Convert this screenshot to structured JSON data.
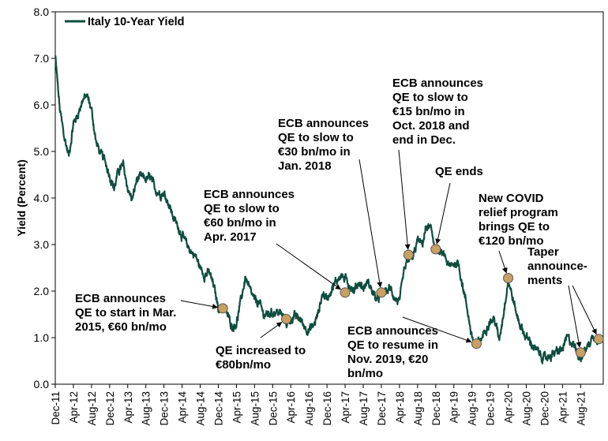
{
  "chart_data": {
    "type": "line",
    "title": "",
    "ylabel": "Yield (Percent)",
    "xlabel": "",
    "ylim": [
      0.0,
      8.0
    ],
    "yticks": [
      "0.0",
      "1.0",
      "2.0",
      "3.0",
      "4.0",
      "5.0",
      "6.0",
      "7.0",
      "8.0"
    ],
    "xticks": [
      "Dec-11",
      "Apr-12",
      "Aug-12",
      "Dec-12",
      "Apr-13",
      "Aug-13",
      "Dec-13",
      "Apr-14",
      "Aug-14",
      "Dec-14",
      "Apr-15",
      "Aug-15",
      "Dec-15",
      "Apr-16",
      "Aug-16",
      "Dec-16",
      "Apr-17",
      "Aug-17",
      "Dec-17",
      "Apr-18",
      "Aug-18",
      "Dec-18",
      "Apr-19",
      "Aug-19",
      "Dec-19",
      "Apr-20",
      "Aug-20",
      "Dec-20",
      "Apr-21",
      "Aug-21"
    ],
    "grid": false,
    "legend_position": "top-left",
    "line_color": "#0f4d3e",
    "marker_color": "#c9a064",
    "series": [
      {
        "name": "Italy 10-Year Yield",
        "points": [
          [
            "2011-12",
            7.05
          ],
          [
            "2012-01",
            5.9
          ],
          [
            "2012-02",
            5.3
          ],
          [
            "2012-03",
            4.9
          ],
          [
            "2012-04",
            5.6
          ],
          [
            "2012-05",
            5.8
          ],
          [
            "2012-06",
            6.1
          ],
          [
            "2012-07",
            6.2
          ],
          [
            "2012-08",
            5.9
          ],
          [
            "2012-09",
            5.2
          ],
          [
            "2012-10",
            4.95
          ],
          [
            "2012-11",
            4.8
          ],
          [
            "2012-12",
            4.5
          ],
          [
            "2013-01",
            4.2
          ],
          [
            "2013-02",
            4.6
          ],
          [
            "2013-03",
            4.7
          ],
          [
            "2013-04",
            4.2
          ],
          [
            "2013-05",
            3.95
          ],
          [
            "2013-06",
            4.4
          ],
          [
            "2013-07",
            4.45
          ],
          [
            "2013-08",
            4.4
          ],
          [
            "2013-09",
            4.45
          ],
          [
            "2013-10",
            4.2
          ],
          [
            "2013-11",
            4.1
          ],
          [
            "2013-12",
            4.1
          ],
          [
            "2014-01",
            3.9
          ],
          [
            "2014-02",
            3.6
          ],
          [
            "2014-03",
            3.4
          ],
          [
            "2014-04",
            3.2
          ],
          [
            "2014-05",
            3.0
          ],
          [
            "2014-06",
            2.85
          ],
          [
            "2014-07",
            2.75
          ],
          [
            "2014-08",
            2.5
          ],
          [
            "2014-09",
            2.35
          ],
          [
            "2014-10",
            2.4
          ],
          [
            "2014-11",
            2.1
          ],
          [
            "2014-12",
            1.65
          ],
          [
            "2015-01",
            1.65
          ],
          [
            "2015-02",
            1.5
          ],
          [
            "2015-03",
            1.25
          ],
          [
            "2015-04",
            1.3
          ],
          [
            "2015-05",
            1.8
          ],
          [
            "2015-06",
            2.3
          ],
          [
            "2015-07",
            2.0
          ],
          [
            "2015-08",
            1.8
          ],
          [
            "2015-09",
            1.75
          ],
          [
            "2015-10",
            1.5
          ],
          [
            "2015-11",
            1.5
          ],
          [
            "2015-12",
            1.55
          ],
          [
            "2016-01",
            1.55
          ],
          [
            "2016-02",
            1.5
          ],
          [
            "2016-03",
            1.3
          ],
          [
            "2016-04",
            1.4
          ],
          [
            "2016-05",
            1.45
          ],
          [
            "2016-06",
            1.4
          ],
          [
            "2016-07",
            1.25
          ],
          [
            "2016-08",
            1.15
          ],
          [
            "2016-09",
            1.25
          ],
          [
            "2016-10",
            1.5
          ],
          [
            "2016-11",
            1.95
          ],
          [
            "2016-12",
            1.85
          ],
          [
            "2017-01",
            2.05
          ],
          [
            "2017-02",
            2.2
          ],
          [
            "2017-03",
            2.35
          ],
          [
            "2017-04",
            2.25
          ],
          [
            "2017-05",
            2.15
          ],
          [
            "2017-06",
            2.0
          ],
          [
            "2017-07",
            2.2
          ],
          [
            "2017-08",
            2.05
          ],
          [
            "2017-09",
            2.2
          ],
          [
            "2017-10",
            2.0
          ],
          [
            "2017-11",
            1.8
          ],
          [
            "2017-12",
            1.95
          ],
          [
            "2018-01",
            2.0
          ],
          [
            "2018-02",
            2.05
          ],
          [
            "2018-03",
            1.85
          ],
          [
            "2018-04",
            1.75
          ],
          [
            "2018-05",
            2.4
          ],
          [
            "2018-06",
            2.7
          ],
          [
            "2018-07",
            2.7
          ],
          [
            "2018-08",
            3.1
          ],
          [
            "2018-09",
            3.0
          ],
          [
            "2018-10",
            3.4
          ],
          [
            "2018-11",
            3.3
          ],
          [
            "2018-12",
            2.9
          ],
          [
            "2019-01",
            2.8
          ],
          [
            "2019-02",
            2.75
          ],
          [
            "2019-03",
            2.5
          ],
          [
            "2019-04",
            2.6
          ],
          [
            "2019-05",
            2.6
          ],
          [
            "2019-06",
            2.1
          ],
          [
            "2019-07",
            1.6
          ],
          [
            "2019-08",
            1.0
          ],
          [
            "2019-09",
            0.85
          ],
          [
            "2019-10",
            0.95
          ],
          [
            "2019-11",
            1.2
          ],
          [
            "2019-12",
            1.35
          ],
          [
            "2020-01",
            1.4
          ],
          [
            "2020-02",
            0.95
          ],
          [
            "2020-03",
            1.55
          ],
          [
            "2020-04",
            2.25
          ],
          [
            "2020-05",
            1.85
          ],
          [
            "2020-06",
            1.45
          ],
          [
            "2020-07",
            1.2
          ],
          [
            "2020-08",
            1.0
          ],
          [
            "2020-09",
            0.9
          ],
          [
            "2020-10",
            0.75
          ],
          [
            "2020-11",
            0.65
          ],
          [
            "2020-12",
            0.55
          ],
          [
            "2021-01",
            0.6
          ],
          [
            "2021-02",
            0.65
          ],
          [
            "2021-03",
            0.7
          ],
          [
            "2021-04",
            0.75
          ],
          [
            "2021-05",
            1.0
          ],
          [
            "2021-06",
            0.9
          ],
          [
            "2021-07",
            0.75
          ],
          [
            "2021-08",
            0.58
          ],
          [
            "2021-09",
            0.72
          ],
          [
            "2021-10",
            0.9
          ],
          [
            "2021-11",
            1.05
          ],
          [
            "2021-12",
            0.95
          ]
        ]
      }
    ],
    "markers": [
      {
        "date": "2015-01",
        "value": 1.63
      },
      {
        "date": "2016-03",
        "value": 1.4
      },
      {
        "date": "2017-04",
        "value": 1.97
      },
      {
        "date": "2017-12",
        "value": 1.97
      },
      {
        "date": "2018-06",
        "value": 2.78
      },
      {
        "date": "2018-12",
        "value": 2.9
      },
      {
        "date": "2019-09",
        "value": 0.87
      },
      {
        "date": "2020-04",
        "value": 2.28
      },
      {
        "date": "2021-08",
        "value": 0.68
      },
      {
        "date": "2021-12",
        "value": 0.97
      }
    ],
    "annotations": [
      {
        "lines": [
          "ECB announces",
          "QE to start in Mar.",
          "2015, €60 bn/mo"
        ]
      },
      {
        "lines": [
          "QE increased to",
          "€80bn/mo"
        ]
      },
      {
        "lines": [
          "ECB announces",
          "QE to slow to",
          "€60 bn/mo in",
          "Apr. 2017"
        ]
      },
      {
        "lines": [
          "ECB announces",
          "QE to slow to",
          "€30 bn/mo in",
          "Jan. 2018"
        ]
      },
      {
        "lines": [
          "ECB announces",
          "QE to slow to",
          "€15 bn/mo in",
          "Oct. 2018 and",
          "end in Dec."
        ]
      },
      {
        "lines": [
          "QE ends"
        ]
      },
      {
        "lines": [
          "ECB announces",
          "QE to resume in",
          "Nov. 2019, €20",
          "bn/mo"
        ]
      },
      {
        "lines": [
          "New COVID",
          "relief program",
          "brings QE to",
          "€120 bn/mo"
        ]
      },
      {
        "lines": [
          "Taper",
          "announce-",
          "ments"
        ]
      }
    ]
  }
}
